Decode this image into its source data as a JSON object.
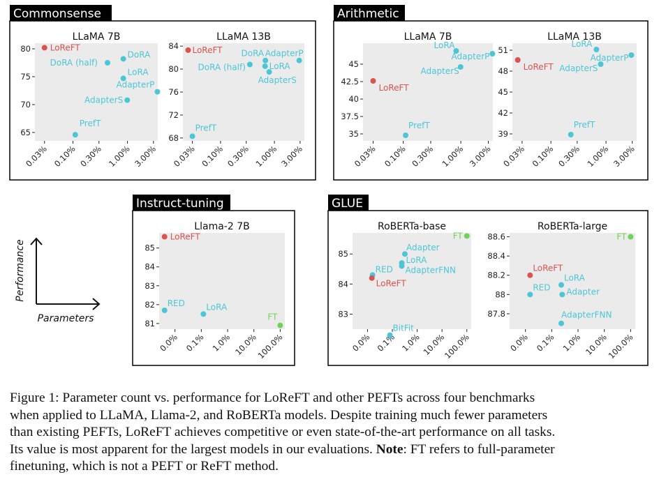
{
  "colors": {
    "loreft": "#d9534f",
    "peft": "#4cc6d6",
    "ft": "#6fd35a",
    "panel_bg": "#ebebeb",
    "label_bg": "#000000",
    "label_fg": "#ffffff"
  },
  "groups": [
    {
      "name": "Commonsense"
    },
    {
      "name": "Arithmetic"
    },
    {
      "name": "Instruct-tuning"
    },
    {
      "name": "GLUE"
    }
  ],
  "legend": {
    "y_label": "Performance",
    "x_label": "Parameters"
  },
  "chart_data": [
    {
      "type": "scatter",
      "group": "Commonsense",
      "title": "LLaMA 7B",
      "xscale": "log",
      "xlim": [
        0.02,
        3.6
      ],
      "ylim": [
        63.5,
        81
      ],
      "xticks": [
        0.03,
        0.1,
        0.3,
        1.0,
        3.0
      ],
      "xticklabels": [
        "0.03%",
        "0.10%",
        "0.30%",
        "1.00%",
        "3.00%"
      ],
      "yticks": [
        65,
        70,
        75,
        80
      ],
      "yticklabels": [
        "65",
        "70",
        "75",
        "80"
      ],
      "points": [
        {
          "label": "LoReFT",
          "x": 0.03,
          "y": 80.2,
          "kind": "loreft"
        },
        {
          "label": "DoRA",
          "x": 0.84,
          "y": 78.2,
          "kind": "peft"
        },
        {
          "label": "DoRA (half)",
          "x": 0.43,
          "y": 77.5,
          "kind": "peft"
        },
        {
          "label": "LoRA",
          "x": 0.84,
          "y": 74.7,
          "kind": "peft"
        },
        {
          "label": "AdapterP",
          "x": 3.54,
          "y": 72.3,
          "kind": "peft"
        },
        {
          "label": "AdapterS",
          "x": 0.99,
          "y": 70.8,
          "kind": "peft"
        },
        {
          "label": "PrefT",
          "x": 0.11,
          "y": 64.6,
          "kind": "peft"
        }
      ]
    },
    {
      "type": "scatter",
      "group": "Commonsense",
      "title": "LLaMA 13B",
      "xscale": "log",
      "xlim": [
        0.02,
        3.6
      ],
      "ylim": [
        67.5,
        84.5
      ],
      "xticks": [
        0.03,
        0.1,
        0.3,
        1.0,
        3.0
      ],
      "xticklabels": [
        "0.03%",
        "0.10%",
        "0.30%",
        "1.00%",
        "3.00%"
      ],
      "yticks": [
        68,
        72,
        76,
        80,
        84
      ],
      "yticklabels": [
        "68",
        "72",
        "76",
        "80",
        "84"
      ],
      "points": [
        {
          "label": "LoReFT",
          "x": 0.025,
          "y": 83.3,
          "kind": "loreft"
        },
        {
          "label": "DoRA",
          "x": 0.68,
          "y": 81.5,
          "kind": "peft"
        },
        {
          "label": "AdapterP",
          "x": 2.89,
          "y": 81.5,
          "kind": "peft"
        },
        {
          "label": "LoRA",
          "x": 0.67,
          "y": 80.5,
          "kind": "peft"
        },
        {
          "label": "DoRA (half)",
          "x": 0.35,
          "y": 80.8,
          "kind": "peft"
        },
        {
          "label": "AdapterS",
          "x": 0.8,
          "y": 79.5,
          "kind": "peft"
        },
        {
          "label": "PrefT",
          "x": 0.03,
          "y": 68.3,
          "kind": "peft"
        }
      ]
    },
    {
      "type": "scatter",
      "group": "Arithmetic",
      "title": "LLaMA 7B",
      "xscale": "log",
      "xlim": [
        0.02,
        3.6
      ],
      "ylim": [
        34,
        48
      ],
      "xticks": [
        0.03,
        0.1,
        0.3,
        1.0,
        3.0
      ],
      "xticklabels": [
        "0.03%",
        "0.10%",
        "0.30%",
        "1.00%",
        "3.00%"
      ],
      "yticks": [
        35,
        37.5,
        40,
        42.5,
        45
      ],
      "yticklabels": [
        "35",
        "37.5",
        "40",
        "42.5",
        "45"
      ],
      "points": [
        {
          "label": "LoRA",
          "x": 0.83,
          "y": 46.9,
          "kind": "peft"
        },
        {
          "label": "AdapterP",
          "x": 3.54,
          "y": 46.5,
          "kind": "peft"
        },
        {
          "label": "AdapterS",
          "x": 0.99,
          "y": 44.6,
          "kind": "peft"
        },
        {
          "label": "LoReFT",
          "x": 0.03,
          "y": 42.6,
          "kind": "loreft"
        },
        {
          "label": "PrefT",
          "x": 0.11,
          "y": 34.8,
          "kind": "peft"
        }
      ]
    },
    {
      "type": "scatter",
      "group": "Arithmetic",
      "title": "LLaMA 13B",
      "xscale": "log",
      "xlim": [
        0.02,
        3.6
      ],
      "ylim": [
        38,
        52
      ],
      "xticks": [
        0.03,
        0.1,
        0.3,
        1.0,
        3.0
      ],
      "xticklabels": [
        "0.03%",
        "0.10%",
        "0.30%",
        "1.00%",
        "3.00%"
      ],
      "yticks": [
        39,
        42,
        45,
        48,
        51
      ],
      "yticklabels": [
        "39",
        "42",
        "45",
        "48",
        "51"
      ],
      "points": [
        {
          "label": "LoRA",
          "x": 0.67,
          "y": 51.1,
          "kind": "peft"
        },
        {
          "label": "AdapterP",
          "x": 2.89,
          "y": 50.3,
          "kind": "peft"
        },
        {
          "label": "AdapterS",
          "x": 0.8,
          "y": 49.0,
          "kind": "peft"
        },
        {
          "label": "LoReFT",
          "x": 0.025,
          "y": 49.6,
          "kind": "loreft"
        },
        {
          "label": "PrefT",
          "x": 0.23,
          "y": 38.9,
          "kind": "peft"
        }
      ]
    },
    {
      "type": "scatter",
      "group": "Instruct-tuning",
      "title": "Llama-2 7B",
      "xscale": "log",
      "xlim": [
        0.0025,
        150
      ],
      "ylim": [
        80.7,
        85.8
      ],
      "xticks": [
        0.01,
        0.1,
        1,
        10,
        100
      ],
      "xticklabels": [
        "0.0%",
        "0.1%",
        "1.0%",
        "10.0%",
        "100.0%"
      ],
      "yticks": [
        81,
        82,
        83,
        84,
        85
      ],
      "yticklabels": [
        "81",
        "82",
        "83",
        "84",
        "85"
      ],
      "points": [
        {
          "label": "LoReFT",
          "x": 0.004,
          "y": 85.6,
          "kind": "loreft"
        },
        {
          "label": "RED",
          "x": 0.004,
          "y": 81.7,
          "kind": "peft"
        },
        {
          "label": "LoRA",
          "x": 0.12,
          "y": 81.5,
          "kind": "peft"
        },
        {
          "label": "FT",
          "x": 100,
          "y": 80.9,
          "kind": "ft"
        }
      ]
    },
    {
      "type": "scatter",
      "group": "GLUE",
      "title": "RoBERTa-base",
      "xscale": "log",
      "xlim": [
        0.0025,
        150
      ],
      "ylim": [
        82.5,
        85.7
      ],
      "xticks": [
        0.01,
        0.1,
        1,
        10,
        100
      ],
      "xticklabels": [
        "0.0%",
        "0.1%",
        "1.0%",
        "10.0%",
        "100.0%"
      ],
      "yticks": [
        83,
        84,
        85
      ],
      "yticklabels": [
        "83",
        "84",
        "85"
      ],
      "points": [
        {
          "label": "FT",
          "x": 100,
          "y": 85.6,
          "kind": "ft"
        },
        {
          "label": "Adapter",
          "x": 0.32,
          "y": 85.0,
          "kind": "peft"
        },
        {
          "label": "LoRA",
          "x": 0.24,
          "y": 84.7,
          "kind": "peft"
        },
        {
          "label": "AdapterFNN",
          "x": 0.24,
          "y": 84.6,
          "kind": "peft"
        },
        {
          "label": "RED",
          "x": 0.016,
          "y": 84.3,
          "kind": "peft"
        },
        {
          "label": "LoReFT",
          "x": 0.015,
          "y": 84.2,
          "kind": "loreft"
        },
        {
          "label": "BitFit",
          "x": 0.08,
          "y": 82.3,
          "kind": "peft"
        }
      ]
    },
    {
      "type": "scatter",
      "group": "GLUE",
      "title": "RoBERTa-large",
      "xscale": "log",
      "xlim": [
        0.0025,
        150
      ],
      "ylim": [
        87.64,
        88.64
      ],
      "xticks": [
        0.01,
        0.1,
        1,
        10,
        100
      ],
      "xticklabels": [
        "0.0%",
        "0.1%",
        "1.0%",
        "10.0%",
        "100.0%"
      ],
      "yticks": [
        87.8,
        88,
        88.2,
        88.4,
        88.6
      ],
      "yticklabels": [
        "87.8",
        "88",
        "88.2",
        "88.4",
        "88.6"
      ],
      "points": [
        {
          "label": "FT",
          "x": 100,
          "y": 88.6,
          "kind": "ft"
        },
        {
          "label": "LoReFT",
          "x": 0.015,
          "y": 88.2,
          "kind": "loreft"
        },
        {
          "label": "LoRA",
          "x": 0.23,
          "y": 88.1,
          "kind": "peft"
        },
        {
          "label": "Adapter",
          "x": 0.25,
          "y": 88.0,
          "kind": "peft"
        },
        {
          "label": "RED",
          "x": 0.015,
          "y": 88.0,
          "kind": "peft"
        },
        {
          "label": "AdapterFNN",
          "x": 0.23,
          "y": 87.7,
          "kind": "peft"
        }
      ]
    }
  ],
  "caption": {
    "lines": [
      "Figure 1: Parameter count vs. performance for LoReFT and other PEFTs across four benchmarks",
      "when applied to LLaMA, Llama-2, and RoBERTa models. Despite training much fewer parameters",
      "than existing PEFTs, LoReFT achieves competitive or even state-of-the-art performance on all tasks.",
      "Its value is most apparent for the largest models in our evaluations."
    ],
    "note_label": "Note",
    "note_text_1": ": FT refers to full-parameter",
    "note_text_2": "finetuning, which is not a PEFT or ReFT method."
  }
}
